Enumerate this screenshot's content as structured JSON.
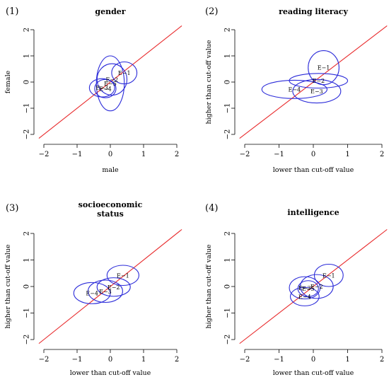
{
  "chart_data": [
    {
      "type": "scatter",
      "panel_label": "(1)",
      "title": [
        "gender"
      ],
      "xlabel": "male",
      "ylabel": "female",
      "xlim": [
        -2,
        2
      ],
      "ylim": [
        -2,
        2
      ],
      "xticks": [
        -2,
        -1,
        0,
        1,
        2
      ],
      "yticks": [
        -2,
        -1,
        0,
        1,
        2
      ],
      "reference_line": "y = x",
      "colors": {
        "reference_line": "#e8292b",
        "ellipses": "#2b2bd9"
      },
      "ellipses": [
        {
          "label": "E−1",
          "cx": 0.42,
          "cy": 0.35,
          "rx": 0.38,
          "ry": 0.42
        },
        {
          "label": "E−2",
          "cx": 0.05,
          "cy": 0.1,
          "rx": 0.45,
          "ry": 0.6
        },
        {
          "label": "E−3",
          "cx": -0.25,
          "cy": -0.22,
          "rx": 0.38,
          "ry": 0.35
        },
        {
          "label": "E−4",
          "cx": -0.15,
          "cy": -0.25,
          "rx": 0.32,
          "ry": 0.35
        },
        {
          "label": "E−5",
          "cx": 0.0,
          "cy": -0.05,
          "rx": 0.42,
          "ry": 1.05
        }
      ]
    },
    {
      "type": "scatter",
      "panel_label": "(2)",
      "title": [
        "reading literacy"
      ],
      "xlabel": "lower than cut-off value",
      "ylabel": "higher than cut-off value",
      "xlim": [
        -2,
        2
      ],
      "ylim": [
        -2,
        2
      ],
      "xticks": [
        -2,
        -1,
        0,
        1,
        2
      ],
      "yticks": [
        -2,
        -1,
        0,
        1,
        2
      ],
      "reference_line": "y = x",
      "colors": {
        "reference_line": "#e8292b",
        "ellipses": "#2b2bd9"
      },
      "ellipses": [
        {
          "label": "E−1",
          "cx": 0.3,
          "cy": 0.55,
          "rx": 0.45,
          "ry": 0.65
        },
        {
          "label": "E−2",
          "cx": 0.15,
          "cy": 0.05,
          "rx": 0.85,
          "ry": 0.28
        },
        {
          "label": "E−3",
          "cx": 0.1,
          "cy": -0.35,
          "rx": 0.7,
          "ry": 0.45
        },
        {
          "label": "E−4",
          "cx": -0.55,
          "cy": -0.28,
          "rx": 0.95,
          "ry": 0.35
        }
      ]
    },
    {
      "type": "scatter",
      "panel_label": "(3)",
      "title": [
        "socioeconomic",
        "status"
      ],
      "xlabel": "lower than cut-off value",
      "ylabel": "higher than cut-off value",
      "xlim": [
        -2,
        2
      ],
      "ylim": [
        -2,
        2
      ],
      "xticks": [
        -2,
        -1,
        0,
        1,
        2
      ],
      "yticks": [
        -2,
        -1,
        0,
        1,
        2
      ],
      "reference_line": "y = x",
      "colors": {
        "reference_line": "#e8292b",
        "ellipses": "#2b2bd9"
      },
      "ellipses": [
        {
          "label": "E−1",
          "cx": 0.38,
          "cy": 0.42,
          "rx": 0.48,
          "ry": 0.38
        },
        {
          "label": "E−2",
          "cx": 0.1,
          "cy": -0.02,
          "rx": 0.5,
          "ry": 0.35
        },
        {
          "label": "E−3",
          "cx": -0.15,
          "cy": -0.18,
          "rx": 0.52,
          "ry": 0.42
        },
        {
          "label": "E−4",
          "cx": -0.55,
          "cy": -0.25,
          "rx": 0.55,
          "ry": 0.4
        }
      ]
    },
    {
      "type": "scatter",
      "panel_label": "(4)",
      "title": [
        "intelligence"
      ],
      "xlabel": "lower than cut-off value",
      "ylabel": "higher than cut-off value",
      "xlim": [
        -2,
        2
      ],
      "ylim": [
        -2,
        2
      ],
      "xticks": [
        -2,
        -1,
        0,
        1,
        2
      ],
      "yticks": [
        -2,
        -1,
        0,
        1,
        2
      ],
      "reference_line": "y = x",
      "colors": {
        "reference_line": "#e8292b",
        "ellipses": "#2b2bd9"
      },
      "ellipses": [
        {
          "label": "E−1",
          "cx": 0.45,
          "cy": 0.42,
          "rx": 0.42,
          "ry": 0.42
        },
        {
          "label": "E−2",
          "cx": 0.1,
          "cy": 0.0,
          "rx": 0.48,
          "ry": 0.45
        },
        {
          "label": "E−3",
          "cx": -0.25,
          "cy": -0.05,
          "rx": 0.45,
          "ry": 0.42
        },
        {
          "label": "E−4",
          "cx": -0.25,
          "cy": -0.38,
          "rx": 0.42,
          "ry": 0.35
        },
        {
          "label": "E−5",
          "cx": -0.15,
          "cy": -0.08,
          "rx": 0.3,
          "ry": 0.3
        }
      ]
    }
  ]
}
